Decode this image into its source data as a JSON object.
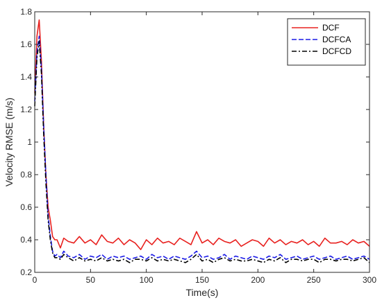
{
  "chart_data": {
    "type": "line",
    "title": "",
    "xlabel": "Time(s)",
    "ylabel": "Velocity RMSE (m/s)",
    "xlim": [
      0,
      300
    ],
    "ylim": [
      0.2,
      1.8
    ],
    "xticks": [
      0,
      50,
      100,
      150,
      200,
      250,
      300
    ],
    "yticks": [
      0.2,
      0.4,
      0.6,
      0.8,
      1,
      1.2,
      1.4,
      1.6,
      1.8
    ],
    "grid": false,
    "legend_location": "top-right",
    "series": [
      {
        "name": "DCF",
        "color": "#e8201e",
        "dash": "solid",
        "x": [
          0,
          2,
          4,
          6,
          8,
          10,
          12,
          14,
          16,
          18,
          20,
          23,
          26,
          30,
          35,
          40,
          45,
          50,
          55,
          60,
          65,
          70,
          75,
          80,
          85,
          90,
          95,
          100,
          105,
          110,
          115,
          120,
          125,
          130,
          135,
          140,
          145,
          150,
          155,
          160,
          165,
          170,
          175,
          180,
          185,
          190,
          195,
          200,
          205,
          210,
          215,
          220,
          225,
          230,
          235,
          240,
          245,
          250,
          255,
          260,
          265,
          270,
          275,
          280,
          285,
          290,
          295,
          300
        ],
        "y": [
          1.3,
          1.65,
          1.75,
          1.5,
          1.1,
          0.8,
          0.6,
          0.52,
          0.42,
          0.4,
          0.4,
          0.35,
          0.41,
          0.39,
          0.38,
          0.42,
          0.38,
          0.4,
          0.37,
          0.43,
          0.39,
          0.38,
          0.41,
          0.37,
          0.4,
          0.38,
          0.34,
          0.4,
          0.37,
          0.41,
          0.38,
          0.39,
          0.37,
          0.41,
          0.39,
          0.37,
          0.45,
          0.38,
          0.4,
          0.37,
          0.41,
          0.39,
          0.38,
          0.4,
          0.36,
          0.38,
          0.4,
          0.39,
          0.36,
          0.41,
          0.38,
          0.4,
          0.37,
          0.39,
          0.38,
          0.4,
          0.37,
          0.39,
          0.36,
          0.41,
          0.38,
          0.38,
          0.39,
          0.37,
          0.4,
          0.38,
          0.39,
          0.36
        ]
      },
      {
        "name": "DCFCA",
        "color": "#1a1ae6",
        "dash": "dashed",
        "x": [
          0,
          2,
          4,
          6,
          8,
          10,
          12,
          14,
          16,
          18,
          20,
          23,
          26,
          30,
          35,
          40,
          45,
          50,
          55,
          60,
          65,
          70,
          75,
          80,
          85,
          90,
          95,
          100,
          105,
          110,
          115,
          120,
          125,
          130,
          135,
          140,
          145,
          150,
          155,
          160,
          165,
          170,
          175,
          180,
          185,
          190,
          195,
          200,
          205,
          210,
          215,
          220,
          225,
          230,
          235,
          240,
          245,
          250,
          255,
          260,
          265,
          270,
          275,
          280,
          285,
          290,
          295,
          300
        ],
        "y": [
          1.25,
          1.55,
          1.65,
          1.45,
          1.1,
          0.8,
          0.55,
          0.42,
          0.33,
          0.3,
          0.31,
          0.29,
          0.33,
          0.3,
          0.29,
          0.31,
          0.28,
          0.3,
          0.29,
          0.31,
          0.28,
          0.3,
          0.29,
          0.3,
          0.28,
          0.29,
          0.3,
          0.28,
          0.31,
          0.29,
          0.3,
          0.28,
          0.3,
          0.29,
          0.28,
          0.3,
          0.33,
          0.29,
          0.3,
          0.28,
          0.29,
          0.31,
          0.28,
          0.3,
          0.29,
          0.28,
          0.3,
          0.29,
          0.28,
          0.3,
          0.29,
          0.31,
          0.28,
          0.29,
          0.3,
          0.28,
          0.29,
          0.3,
          0.28,
          0.29,
          0.3,
          0.28,
          0.29,
          0.3,
          0.28,
          0.29,
          0.3,
          0.28
        ]
      },
      {
        "name": "DCFCD",
        "color": "#000000",
        "dash": "dashdot",
        "x": [
          0,
          2,
          4,
          6,
          8,
          10,
          12,
          14,
          16,
          18,
          20,
          23,
          26,
          30,
          35,
          40,
          45,
          50,
          55,
          60,
          65,
          70,
          75,
          80,
          85,
          90,
          95,
          100,
          105,
          110,
          115,
          120,
          125,
          130,
          135,
          140,
          145,
          150,
          155,
          160,
          165,
          170,
          175,
          180,
          185,
          190,
          195,
          200,
          205,
          210,
          215,
          220,
          225,
          230,
          235,
          240,
          245,
          250,
          255,
          260,
          265,
          270,
          275,
          280,
          285,
          290,
          295,
          300
        ],
        "y": [
          1.22,
          1.52,
          1.62,
          1.42,
          1.05,
          0.75,
          0.52,
          0.4,
          0.32,
          0.29,
          0.29,
          0.28,
          0.31,
          0.29,
          0.27,
          0.29,
          0.27,
          0.28,
          0.27,
          0.29,
          0.27,
          0.28,
          0.27,
          0.28,
          0.26,
          0.28,
          0.28,
          0.27,
          0.29,
          0.27,
          0.28,
          0.27,
          0.28,
          0.27,
          0.26,
          0.28,
          0.31,
          0.27,
          0.28,
          0.26,
          0.28,
          0.29,
          0.27,
          0.28,
          0.27,
          0.27,
          0.28,
          0.27,
          0.26,
          0.28,
          0.27,
          0.29,
          0.26,
          0.28,
          0.28,
          0.27,
          0.28,
          0.28,
          0.26,
          0.28,
          0.28,
          0.27,
          0.28,
          0.28,
          0.27,
          0.28,
          0.29,
          0.26
        ]
      }
    ]
  }
}
